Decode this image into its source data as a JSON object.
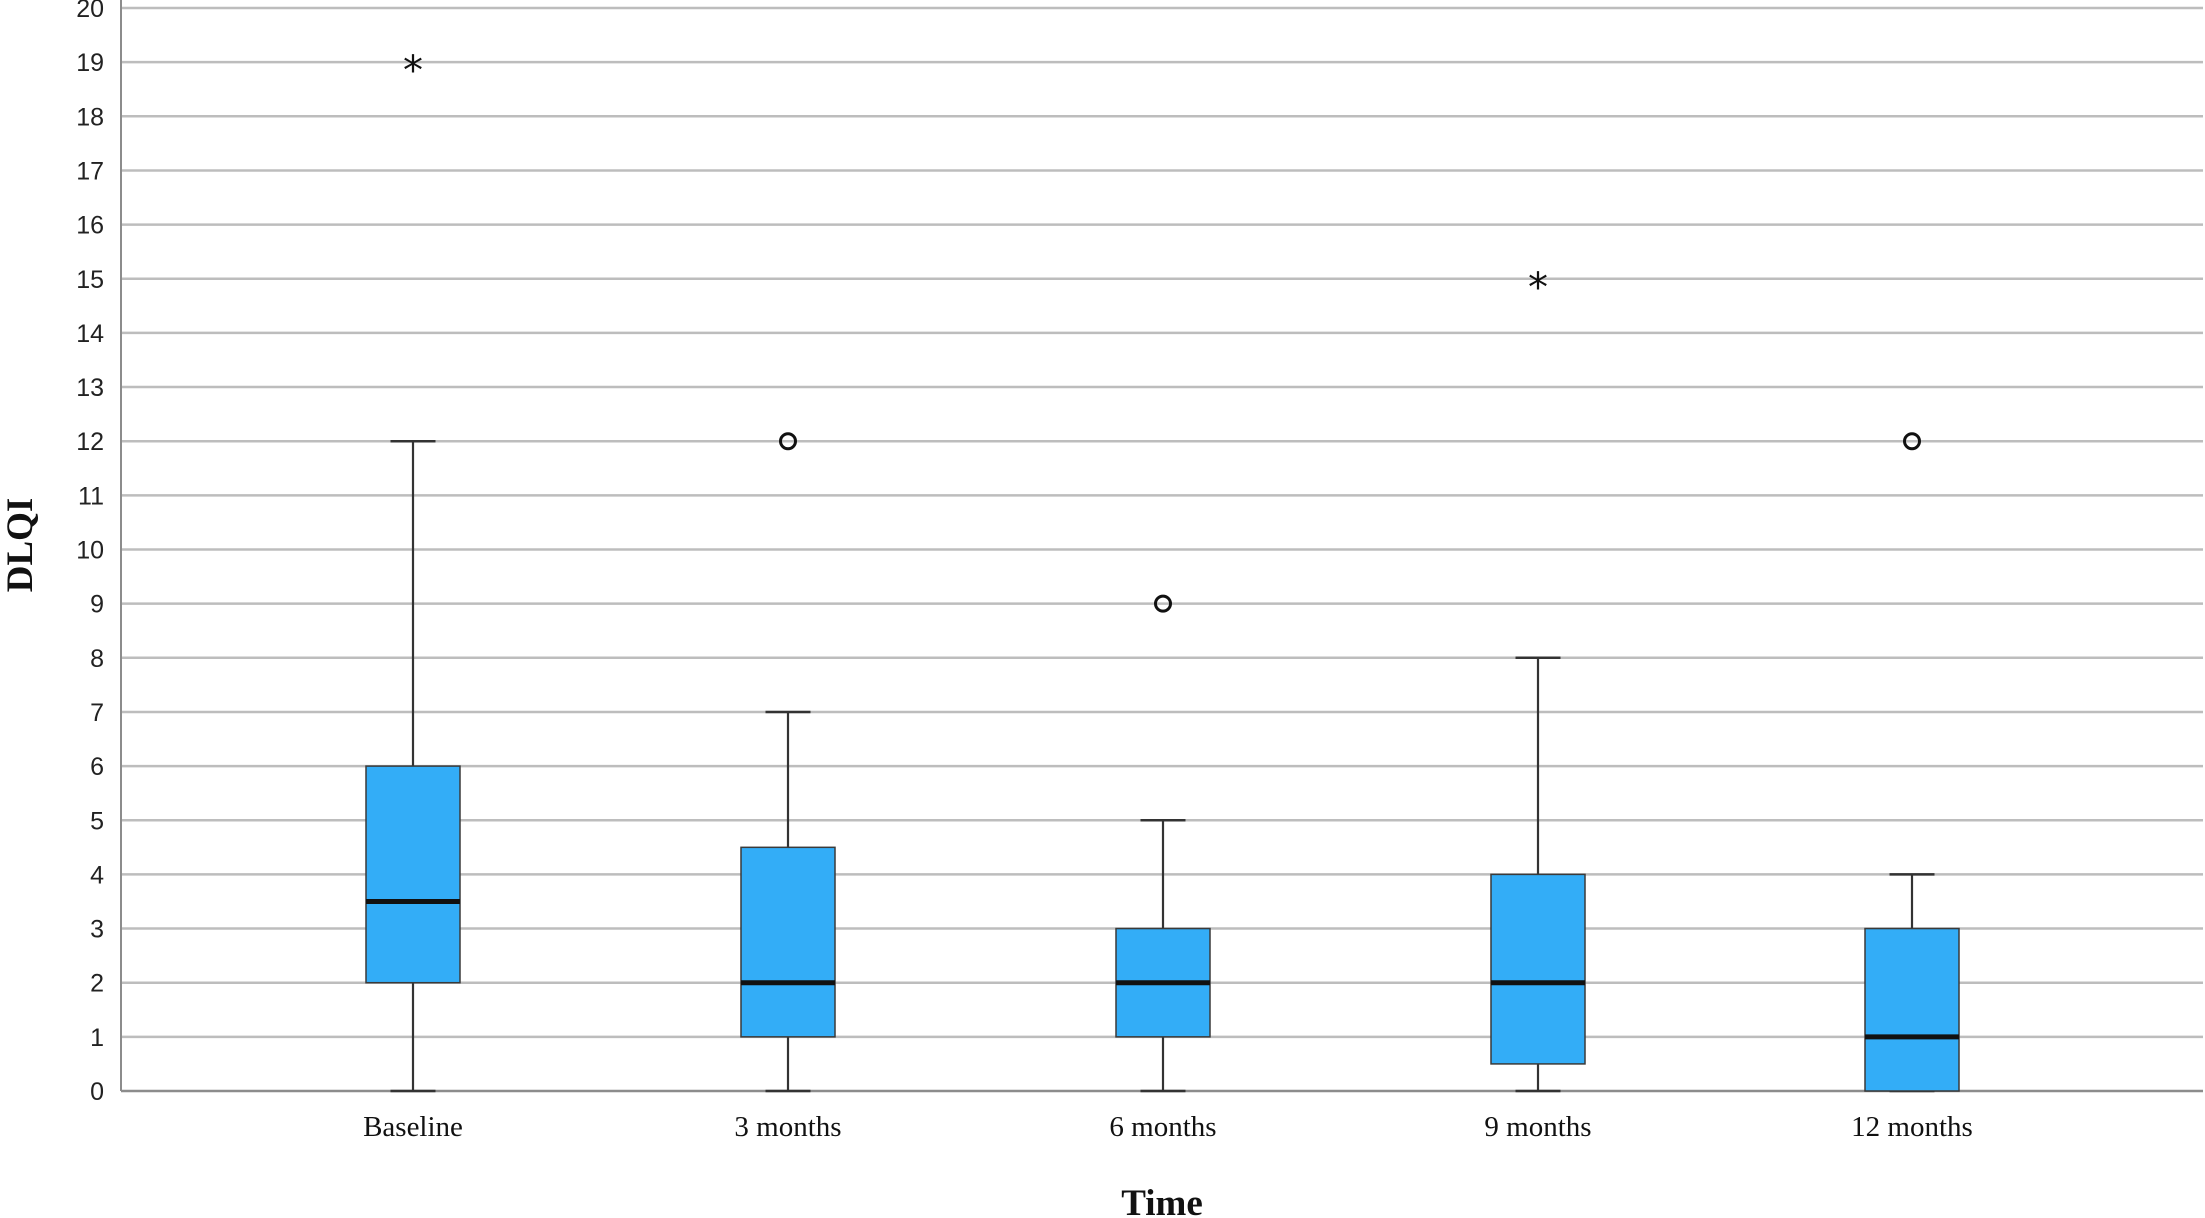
{
  "chart_data": {
    "type": "boxplot",
    "xlabel": "Time",
    "ylabel": "DLQI",
    "ylim": [
      0,
      20
    ],
    "yticks": [
      0,
      1,
      2,
      3,
      4,
      5,
      6,
      7,
      8,
      9,
      10,
      11,
      12,
      13,
      14,
      15,
      16,
      17,
      18,
      19,
      20
    ],
    "grid": true,
    "box_color": "#33adf7",
    "categories": [
      "Baseline",
      "3 months",
      "6 months",
      "9 months",
      "12 months"
    ],
    "boxes": [
      {
        "category": "Baseline",
        "whisker_low": 0,
        "q1": 2,
        "median": 3.5,
        "q3": 6,
        "whisker_high": 12,
        "outliers": [
          {
            "value": 19,
            "marker": "extreme"
          }
        ]
      },
      {
        "category": "3 months",
        "whisker_low": 0,
        "q1": 1,
        "median": 2,
        "q3": 4.5,
        "whisker_high": 7,
        "outliers": [
          {
            "value": 12,
            "marker": "circle"
          }
        ]
      },
      {
        "category": "6 months",
        "whisker_low": 0,
        "q1": 1,
        "median": 2,
        "q3": 3,
        "whisker_high": 5,
        "outliers": [
          {
            "value": 9,
            "marker": "circle"
          }
        ]
      },
      {
        "category": "9 months",
        "whisker_low": 0,
        "q1": 0.5,
        "median": 2,
        "q3": 4,
        "whisker_high": 8,
        "outliers": [
          {
            "value": 15,
            "marker": "extreme"
          }
        ]
      },
      {
        "category": "12 months",
        "whisker_low": 0,
        "q1": 0,
        "median": 1,
        "q3": 3,
        "whisker_high": 4,
        "outliers": [
          {
            "value": 12,
            "marker": "circle"
          }
        ]
      }
    ]
  }
}
